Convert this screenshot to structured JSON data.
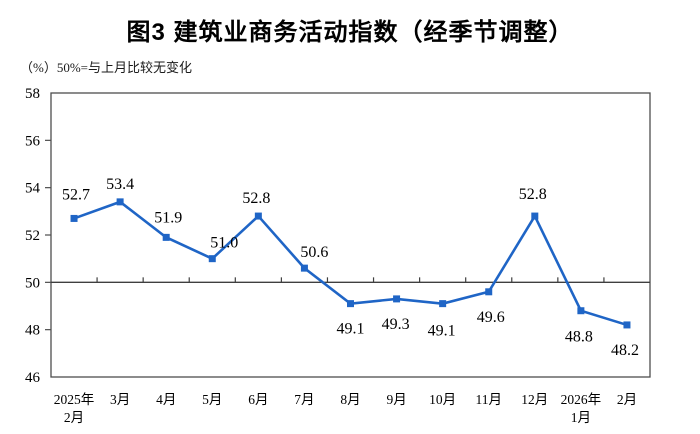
{
  "header": {
    "title": "图3 建筑业商务活动指数（经季节调整）",
    "unit_note": "（%）50%=与上月比较无变化"
  },
  "chart_data": {
    "type": "line",
    "title": "图3 建筑业商务活动指数（经季节调整）",
    "subtitle": "（%）50%=与上月比较无变化",
    "categories": [
      "2025年2月",
      "3月",
      "4月",
      "5月",
      "6月",
      "7月",
      "8月",
      "9月",
      "10月",
      "11月",
      "12月",
      "2026年1月",
      "2月"
    ],
    "x_labels": [
      [
        "2025年",
        "2月"
      ],
      [
        "3月"
      ],
      [
        "4月"
      ],
      [
        "5月"
      ],
      [
        "6月"
      ],
      [
        "7月"
      ],
      [
        "8月"
      ],
      [
        "9月"
      ],
      [
        "10月"
      ],
      [
        "11月"
      ],
      [
        "12月"
      ],
      [
        "2026年",
        "1月"
      ],
      [
        "2月"
      ]
    ],
    "series": [
      {
        "name": "建筑业商务活动指数",
        "values": [
          52.7,
          53.4,
          51.9,
          51.0,
          52.8,
          50.6,
          49.1,
          49.3,
          49.1,
          49.6,
          52.8,
          48.8,
          48.2
        ]
      }
    ],
    "data_labels": [
      "52.7",
      "53.4",
      "51.9",
      "51.0",
      "52.8",
      "50.6",
      "49.1",
      "49.3",
      "49.1",
      "49.6",
      "52.8",
      "48.8",
      "48.2"
    ],
    "label_side": [
      "above",
      "above",
      "above",
      "above",
      "above",
      "above",
      "below",
      "below",
      "below",
      "below",
      "above",
      "below",
      "below"
    ],
    "label_dx": [
      2,
      0,
      2,
      12,
      -2,
      10,
      0,
      -1,
      -1,
      2,
      -2,
      -2,
      -2
    ],
    "label_dy": [
      -19,
      -13,
      -15,
      -11,
      -13,
      -11,
      30,
      30,
      32,
      30,
      -17,
      31,
      30
    ],
    "ylabel": "%",
    "xlabel": "",
    "ylim": [
      46,
      58
    ],
    "yticks": [
      46,
      48,
      50,
      52,
      54,
      56,
      58
    ],
    "reference_line": 50,
    "grid": false,
    "legend": "none",
    "line_color": "#1f65c6",
    "marker": "square",
    "axis_color": "#4d4d4d",
    "text_color": "#000000"
  }
}
